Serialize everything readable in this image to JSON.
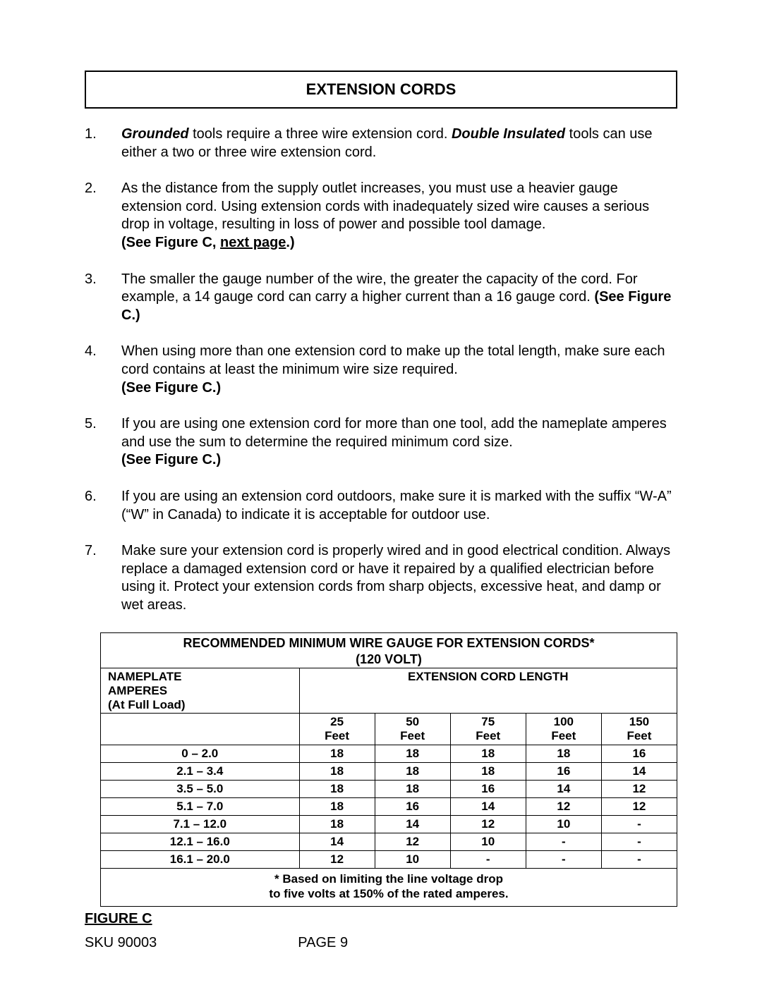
{
  "title": "EXTENSION CORDS",
  "items": [
    {
      "n": "1.",
      "parts": [
        {
          "style": "bi",
          "t": "Grounded"
        },
        {
          "style": "",
          "t": " tools require a three wire extension cord.  "
        },
        {
          "style": "bi",
          "t": "Double Insulated"
        },
        {
          "style": "",
          "t": " tools can use either a two or three wire extension cord."
        }
      ]
    },
    {
      "n": "2.",
      "parts": [
        {
          "style": "",
          "t": "As the distance from the supply outlet increases, you must use a heavier gauge extension cord.  Using extension cords with inadequately sized wire causes a serious drop in voltage, resulting in loss of power and possible tool damage.  "
        },
        {
          "style": "b",
          "t": "See Figure C, "
        },
        {
          "style": "bu",
          "t": "next page"
        },
        {
          "style": "b",
          "t": ".)"
        }
      ],
      "prefix_bold_open": true
    },
    {
      "n": "3.",
      "parts": [
        {
          "style": "",
          "t": "The smaller the gauge number of the wire, the greater the capacity of the cord.  For example, a 14 gauge cord can carry a higher current than a 16 gauge cord.  "
        },
        {
          "style": "b",
          "t": "(See Figure C.)"
        }
      ]
    },
    {
      "n": "4.",
      "parts": [
        {
          "style": "",
          "t": "When using more than one extension cord to make up the total length, make sure each cord contains at least the minimum wire size required. "
        },
        {
          "style": "b",
          "t": "(See Figure C.)"
        }
      ],
      "break_before_bold": true
    },
    {
      "n": "5.",
      "parts": [
        {
          "style": "",
          "t": "If you are using one extension cord for more than one tool, add the nameplate amperes and use the sum to determine the required minimum cord size. "
        },
        {
          "style": "b",
          "t": "(See Figure C.)"
        }
      ],
      "break_before_bold": true
    },
    {
      "n": "6.",
      "parts": [
        {
          "style": "",
          "t": "If you are using an extension cord outdoors, make sure it is marked with the suffix “W-A” (“W” in Canada) to indicate it is acceptable for outdoor use."
        }
      ]
    },
    {
      "n": "7.",
      "parts": [
        {
          "style": "",
          "t": "Make sure your extension cord is properly wired and in good electrical condition.  Always replace a damaged extension cord or have it repaired by a qualified electrician before using it.  Protect your extension cords from sharp objects, excessive heat, and damp or wet areas."
        }
      ]
    }
  ],
  "table": {
    "title_line1": "RECOMMENDED MINIMUM WIRE GAUGE FOR EXTENSION CORDS*",
    "title_line2": "(120 VOLT)",
    "header_left_l1": "NAMEPLATE",
    "header_left_l2": "AMPERES",
    "header_left_l3": "(At Full Load)",
    "header_right": "EXTENSION CORD LENGTH",
    "col_labels": [
      "25",
      "50",
      "75",
      "100",
      "150"
    ],
    "col_unit": "Feet",
    "rows": [
      {
        "amp": "0 – 2.0",
        "v": [
          "18",
          "18",
          "18",
          "18",
          "16"
        ]
      },
      {
        "amp": "2.1 – 3.4",
        "v": [
          "18",
          "18",
          "18",
          "16",
          "14"
        ]
      },
      {
        "amp": "3.5 – 5.0",
        "v": [
          "18",
          "18",
          "16",
          "14",
          "12"
        ]
      },
      {
        "amp": "5.1 – 7.0",
        "v": [
          "18",
          "16",
          "14",
          "12",
          "12"
        ]
      },
      {
        "amp": "7.1 – 12.0",
        "v": [
          "18",
          "14",
          "12",
          "10",
          "-"
        ]
      },
      {
        "amp": "12.1 – 16.0",
        "v": [
          "14",
          "12",
          "10",
          "-",
          "-"
        ]
      },
      {
        "amp": "16.1 – 20.0",
        "v": [
          "12",
          "10",
          "-",
          "-",
          "-"
        ]
      }
    ],
    "footnote_l1": "* Based on limiting the line voltage drop",
    "footnote_l2": "to five volts at 150% of the rated amperes."
  },
  "figure_label": "FIGURE C",
  "sku": "SKU 90003",
  "page": "PAGE 9"
}
